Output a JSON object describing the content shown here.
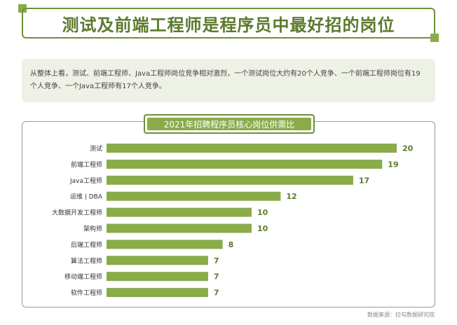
{
  "header": {
    "title": "测试及前端工程师是程序员中最好招的岗位"
  },
  "summary": {
    "text": "从整体上看，测试、前端工程师、Java工程师岗位竞争相对激烈，一个测试岗位大约有20个人竞争、一个前端工程师岗位有19个人竞争、一个Java工程师有17个人竞争。"
  },
  "source": "数据来源：拉勾数据研究院",
  "colors": {
    "accent": "#8aab4a",
    "title": "#5c7a2e",
    "label": "#5c7a2e"
  },
  "chart_data": {
    "type": "bar",
    "orientation": "horizontal",
    "title": "2021年招聘程序员核心岗位供需比",
    "categories": [
      "测试",
      "前端工程师",
      "Java工程师",
      "运维 | DBA",
      "大数据开发工程师",
      "架构师",
      "后端工程师",
      "算法工程师",
      "移动端工程师",
      "软件工程师"
    ],
    "values": [
      20,
      19,
      17,
      12,
      10,
      10,
      8,
      7,
      7,
      7
    ],
    "xlim": [
      0,
      20
    ],
    "grid": false,
    "legend": "none"
  }
}
